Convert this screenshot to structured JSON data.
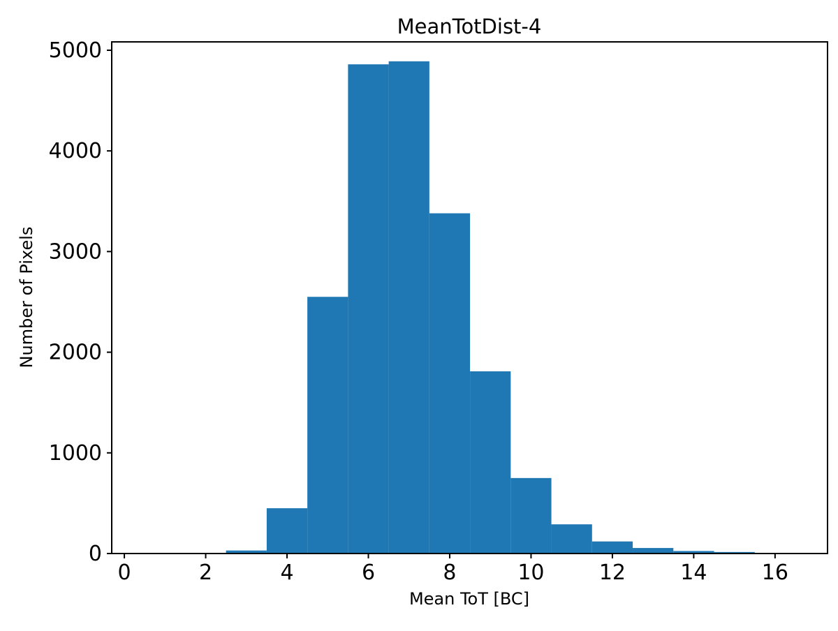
{
  "chart_data": {
    "type": "bar",
    "subtype": "histogram",
    "title": "MeanTotDist-4",
    "xlabel": "Mean ToT [BC]",
    "ylabel": "Number of Pixels",
    "bar_color": "#1f77b4",
    "background_color": "#ffffff",
    "grid": false,
    "bin_edges": [
      2.5,
      3.5,
      4.5,
      5.5,
      6.5,
      7.5,
      8.5,
      9.5,
      10.5,
      11.5,
      12.5,
      13.5,
      14.5,
      15.5
    ],
    "counts": [
      30,
      450,
      2550,
      4860,
      4890,
      3380,
      1810,
      750,
      290,
      120,
      55,
      25,
      15
    ],
    "xlim": [
      -0.31,
      17.29
    ],
    "ylim": [
      0,
      5083
    ],
    "xticks": [
      0,
      2,
      4,
      6,
      8,
      10,
      12,
      14,
      16
    ],
    "yticks": [
      0,
      1000,
      2000,
      3000,
      4000,
      5000
    ]
  }
}
